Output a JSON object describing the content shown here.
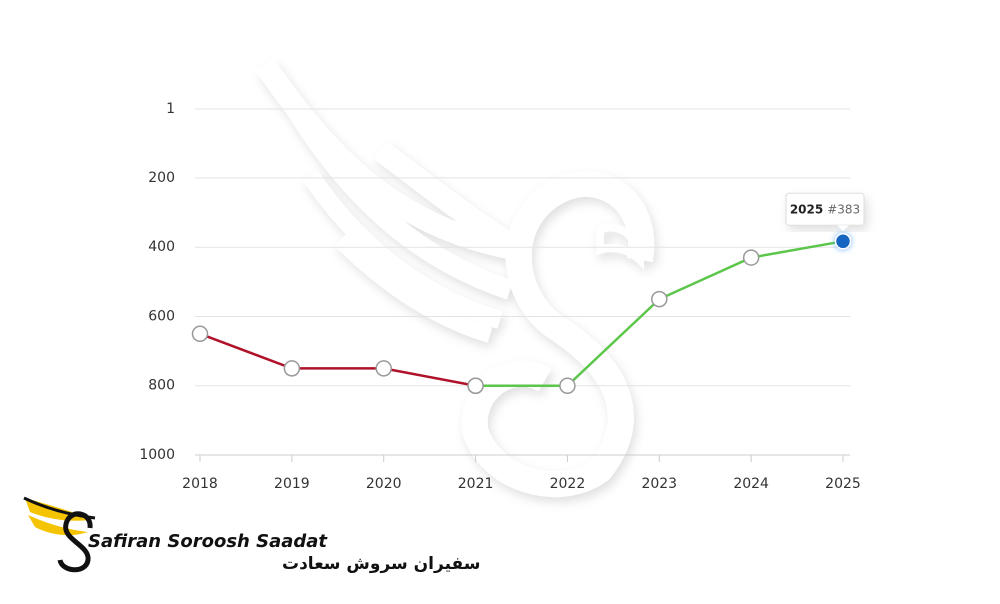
{
  "chart_data": {
    "type": "line",
    "categories": [
      "2018",
      "2019",
      "2020",
      "2021",
      "2022",
      "2023",
      "2024",
      "2025"
    ],
    "series": [
      {
        "color": "#b0122a",
        "values": [
          650,
          750,
          750,
          800,
          null,
          null,
          null,
          null
        ]
      },
      {
        "color": "#5cc64a",
        "values": [
          null,
          null,
          null,
          800,
          800,
          550,
          430,
          383
        ],
        "value_labels": [
          null,
          null,
          null,
          null,
          null,
          null,
          null,
          "#383"
        ]
      }
    ],
    "ylim": [
      1,
      1000
    ],
    "y_inverted": true,
    "yticks": [
      1,
      200,
      400,
      600,
      800,
      1000
    ],
    "grid": true
  },
  "logo": {
    "name": "Safiran Soroosh Saadat",
    "name_fa": "سفیران سروش سعادت"
  }
}
